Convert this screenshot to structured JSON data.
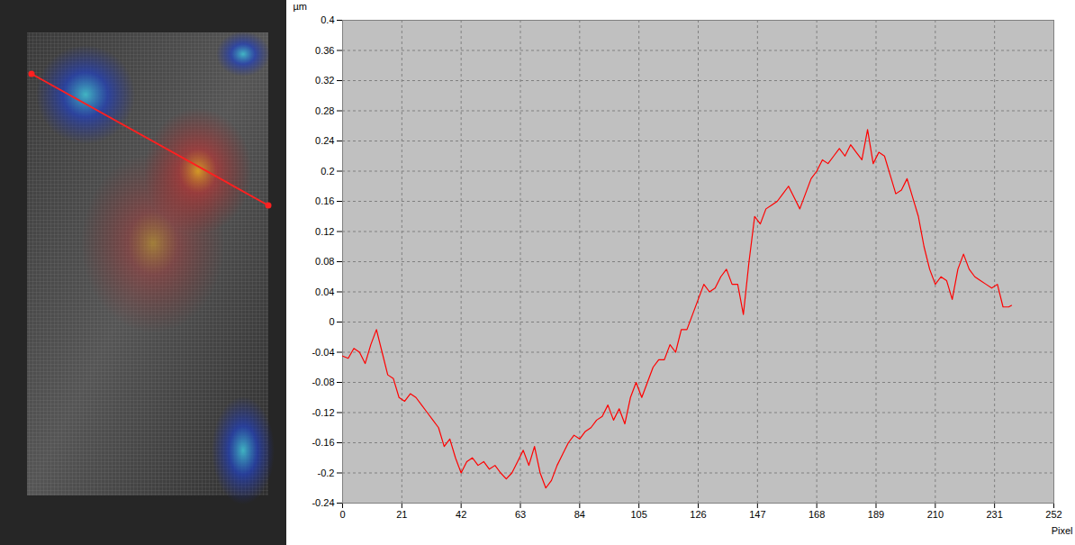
{
  "chart_data": {
    "type": "line",
    "x_label": "Pixel",
    "y_label": "µm",
    "color": "#ff0000",
    "grid": true,
    "xlim": [
      0,
      252
    ],
    "ylim": [
      -0.24,
      0.4
    ],
    "xticks": [
      0,
      21,
      42,
      63,
      84,
      105,
      126,
      147,
      168,
      189,
      210,
      231,
      252
    ],
    "yticks": [
      -0.24,
      -0.2,
      -0.16,
      -0.12,
      -0.08,
      -0.04,
      0,
      0.04,
      0.08,
      0.12,
      0.16,
      0.2,
      0.24,
      0.28,
      0.32,
      0.36,
      0.4
    ],
    "x": [
      0,
      2,
      4,
      6,
      8,
      10,
      12,
      14,
      16,
      18,
      20,
      22,
      24,
      26,
      28,
      30,
      32,
      34,
      36,
      38,
      40,
      42,
      44,
      46,
      48,
      50,
      52,
      54,
      56,
      58,
      60,
      62,
      64,
      66,
      68,
      70,
      72,
      74,
      76,
      78,
      80,
      82,
      84,
      86,
      88,
      90,
      92,
      94,
      96,
      98,
      100,
      102,
      104,
      106,
      108,
      110,
      112,
      114,
      116,
      118,
      120,
      122,
      124,
      126,
      128,
      130,
      132,
      134,
      136,
      138,
      140,
      142,
      144,
      146,
      148,
      150,
      152,
      154,
      156,
      158,
      160,
      162,
      164,
      166,
      168,
      170,
      172,
      174,
      176,
      178,
      180,
      182,
      184,
      186,
      188,
      190,
      192,
      194,
      196,
      198,
      200,
      202,
      204,
      206,
      208,
      210,
      212,
      214,
      216,
      218,
      220,
      222,
      224,
      226,
      228,
      230,
      232,
      234,
      236,
      237
    ],
    "values": [
      -0.045,
      -0.048,
      -0.035,
      -0.04,
      -0.055,
      -0.03,
      -0.01,
      -0.04,
      -0.07,
      -0.075,
      -0.1,
      -0.105,
      -0.095,
      -0.1,
      -0.11,
      -0.12,
      -0.13,
      -0.14,
      -0.165,
      -0.155,
      -0.18,
      -0.2,
      -0.185,
      -0.18,
      -0.19,
      -0.185,
      -0.195,
      -0.19,
      -0.2,
      -0.208,
      -0.2,
      -0.185,
      -0.17,
      -0.19,
      -0.165,
      -0.2,
      -0.22,
      -0.21,
      -0.19,
      -0.175,
      -0.16,
      -0.15,
      -0.155,
      -0.145,
      -0.14,
      -0.13,
      -0.125,
      -0.11,
      -0.13,
      -0.115,
      -0.135,
      -0.1,
      -0.08,
      -0.1,
      -0.08,
      -0.06,
      -0.05,
      -0.05,
      -0.03,
      -0.04,
      -0.01,
      -0.01,
      0.01,
      0.03,
      0.05,
      0.04,
      0.045,
      0.06,
      0.07,
      0.05,
      0.05,
      0.01,
      0.08,
      0.14,
      0.13,
      0.15,
      0.155,
      0.16,
      0.17,
      0.18,
      0.165,
      0.15,
      0.17,
      0.19,
      0.2,
      0.215,
      0.21,
      0.22,
      0.23,
      0.22,
      0.235,
      0.225,
      0.215,
      0.255,
      0.21,
      0.225,
      0.22,
      0.195,
      0.17,
      0.175,
      0.19,
      0.165,
      0.14,
      0.1,
      0.07,
      0.05,
      0.06,
      0.055,
      0.03,
      0.07,
      0.09,
      0.07,
      0.06,
      0.055,
      0.05,
      0.045,
      0.05,
      0.02,
      0.02,
      0.022
    ]
  }
}
